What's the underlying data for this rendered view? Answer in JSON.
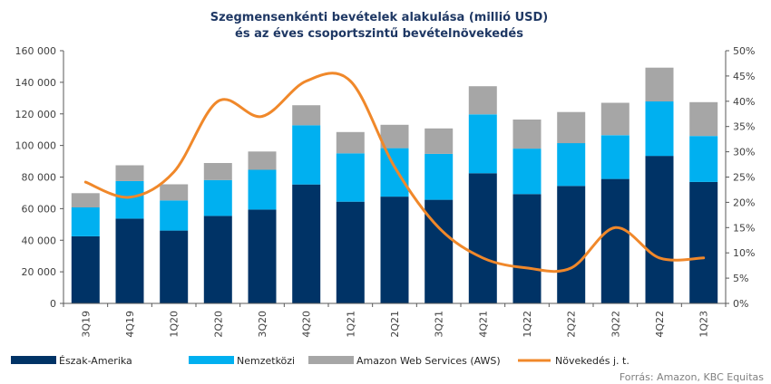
{
  "chart_data": {
    "type": "bar",
    "title_lines": [
      "Szegmensenkénti bevételek alakulása (millió USD)",
      "és az éves csoportszintű bevételnövekedés"
    ],
    "categories": [
      "3Q19",
      "4Q19",
      "1Q20",
      "2Q20",
      "3Q20",
      "4Q20",
      "1Q21",
      "2Q21",
      "3Q21",
      "4Q21",
      "1Q22",
      "2Q22",
      "3Q22",
      "4Q22",
      "1Q23"
    ],
    "stacked": true,
    "series": [
      {
        "name": "Észak-Amerika",
        "color": "#003366",
        "values": [
          42500,
          53700,
          46100,
          55400,
          59400,
          75300,
          64400,
          67600,
          65600,
          82400,
          69200,
          74400,
          78800,
          93400,
          76900
        ]
      },
      {
        "name": "Nemzetközi",
        "color": "#00b0f0",
        "values": [
          18300,
          23800,
          19100,
          22700,
          25200,
          37500,
          30600,
          30700,
          29100,
          37300,
          28800,
          27100,
          27700,
          34500,
          29100
        ]
      },
      {
        "name": "Amazon Web Services (AWS)",
        "color": "#a6a6a6",
        "values": [
          9000,
          9950,
          10200,
          10800,
          11600,
          12700,
          13500,
          14800,
          16100,
          17800,
          18400,
          19700,
          20500,
          21400,
          21400
        ]
      }
    ],
    "line_series": {
      "name": "Növekedés j. t.",
      "color": "#f0882a",
      "axis": "right",
      "values": [
        0.24,
        0.21,
        0.26,
        0.4,
        0.37,
        0.44,
        0.44,
        0.27,
        0.15,
        0.09,
        0.07,
        0.07,
        0.15,
        0.09,
        0.09
      ]
    },
    "y_left": {
      "min": 0,
      "max": 160000,
      "step": 20000,
      "tick_labels": [
        "0",
        "20 000",
        "40 000",
        "60 000",
        "80 000",
        "100 000",
        "120 000",
        "140 000",
        "160 000"
      ]
    },
    "y_right": {
      "min": 0,
      "max": 0.5,
      "step": 0.05,
      "tick_labels": [
        "0%",
        "5%",
        "10%",
        "15%",
        "20%",
        "25%",
        "30%",
        "35%",
        "40%",
        "45%",
        "50%"
      ]
    },
    "grid": false,
    "legend_position": "bottom",
    "source": "Forrás: Amazon, KBC Equitas"
  }
}
